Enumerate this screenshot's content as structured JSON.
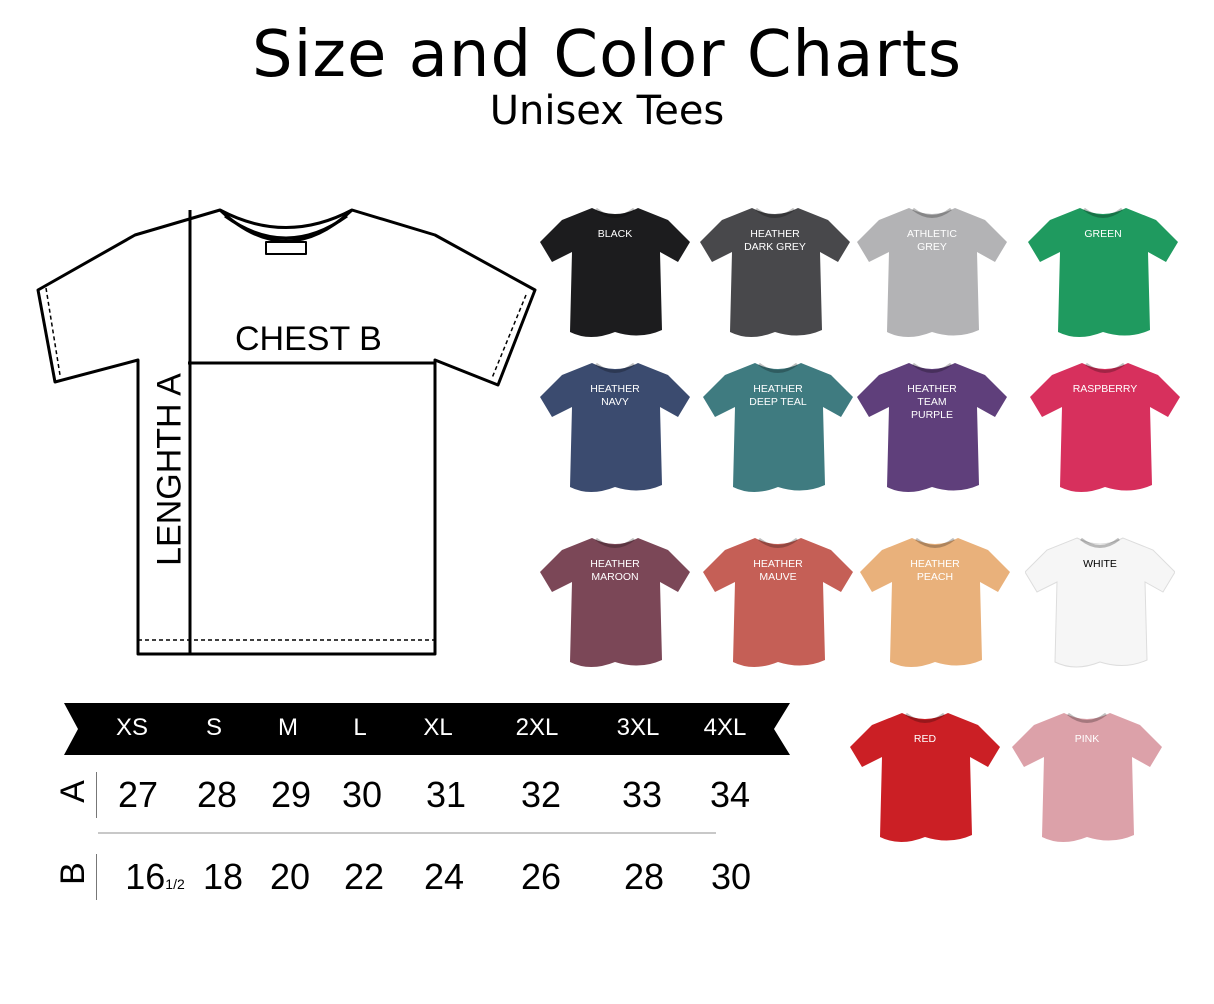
{
  "header": {
    "title": "Size and Color Charts",
    "subtitle": "Unisex Tees"
  },
  "diagram": {
    "chest_label": "CHEST B",
    "length_label": "LENGHTH A"
  },
  "size_chart": {
    "sizes": [
      "XS",
      "S",
      "M",
      "L",
      "XL",
      "2XL",
      "3XL",
      "4XL"
    ],
    "rows": [
      {
        "label": "A",
        "values": [
          "27",
          "28",
          "29",
          "30",
          "31",
          "32",
          "33",
          "34"
        ]
      },
      {
        "label": "B",
        "values": [
          "16",
          "18",
          "20",
          "22",
          "24",
          "26",
          "28",
          "30"
        ],
        "first_fraction": "1/2"
      }
    ]
  },
  "colors": [
    {
      "name": "BLACK",
      "hex": "#1c1c1e",
      "text": "#ffffff"
    },
    {
      "name": "HEATHER\nDARK GREY",
      "hex": "#48484b",
      "text": "#ffffff"
    },
    {
      "name": "ATHLETIC\nGREY",
      "hex": "#b3b3b5",
      "text": "#ffffff"
    },
    {
      "name": "GREEN",
      "hex": "#1f9a5f",
      "text": "#ffffff"
    },
    {
      "name": "HEATHER\nNAVY",
      "hex": "#3b4b6f",
      "text": "#ffffff"
    },
    {
      "name": "HEATHER\nDEEP TEAL",
      "hex": "#3f7b80",
      "text": "#ffffff"
    },
    {
      "name": "HEATHER\nTEAM\nPURPLE",
      "hex": "#5f3f7b",
      "text": "#ffffff"
    },
    {
      "name": "RASPBERRY",
      "hex": "#d7305d",
      "text": "#ffffff"
    },
    {
      "name": "HEATHER\nMAROON",
      "hex": "#7b4757",
      "text": "#ffffff"
    },
    {
      "name": "HEATHER\nMAUVE",
      "hex": "#c55f56",
      "text": "#ffffff"
    },
    {
      "name": "HEATHER\nPEACH",
      "hex": "#e9b17b",
      "text": "#ffffff"
    },
    {
      "name": "WHITE",
      "hex": "#f6f6f6",
      "text": "#000000"
    },
    {
      "name": "RED",
      "hex": "#cb1f25",
      "text": "#ffffff"
    },
    {
      "name": "PINK",
      "hex": "#dca1a9",
      "text": "#ffffff"
    }
  ]
}
